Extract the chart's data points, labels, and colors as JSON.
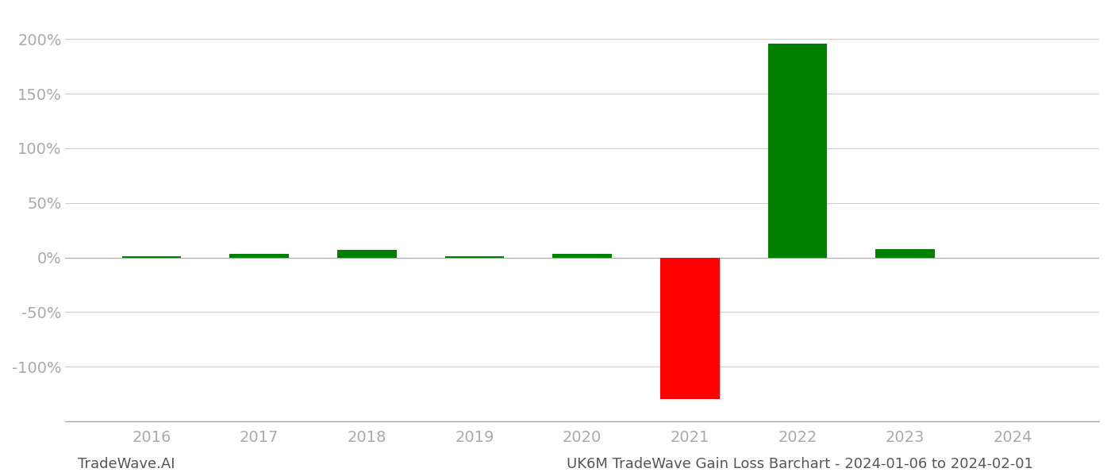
{
  "years": [
    2016,
    2017,
    2018,
    2019,
    2020,
    2021,
    2022,
    2023,
    2024
  ],
  "values": [
    1.2,
    3.0,
    7.0,
    1.0,
    3.0,
    -130.0,
    196.0,
    8.0,
    0.0
  ],
  "bar_colors": [
    "#008000",
    "#008000",
    "#008000",
    "#008000",
    "#008000",
    "#ff0000",
    "#008000",
    "#008000",
    "#008000"
  ],
  "ylim": [
    -150,
    225
  ],
  "yticks": [
    -100,
    -50,
    0,
    50,
    100,
    150,
    200
  ],
  "background_color": "#ffffff",
  "grid_color": "#cccccc",
  "footer_left": "TradeWave.AI",
  "footer_right": "UK6M TradeWave Gain Loss Barchart - 2024-01-06 to 2024-02-01",
  "bar_width": 0.55,
  "axis_color": "#aaaaaa",
  "tick_color": "#aaaaaa",
  "tick_fontsize": 14,
  "footer_fontsize": 13
}
